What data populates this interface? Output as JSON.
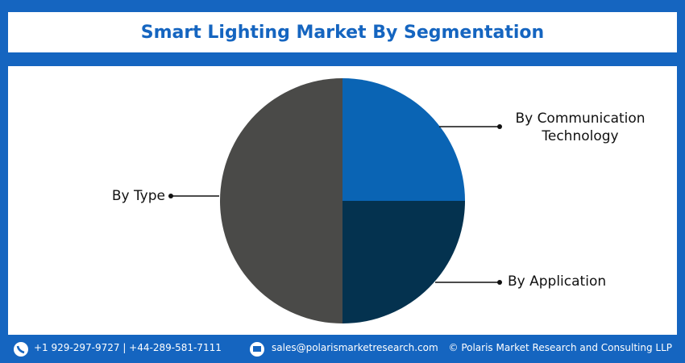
{
  "chart_data": {
    "type": "pie",
    "title": "Smart Lighting Market By Segmentation",
    "categories": [
      "By Communication Technology",
      "By Application",
      "By Type"
    ],
    "values": [
      25,
      25,
      50
    ],
    "colors": [
      "#0a64b4",
      "#04324f",
      "#4a4a48"
    ]
  },
  "footer": {
    "phone": "+1 929-297-9727 | +44-289-581-7111",
    "email": "sales@polarismarketresearch.com",
    "copyright": "© Polaris Market Research and Consulting LLP"
  }
}
